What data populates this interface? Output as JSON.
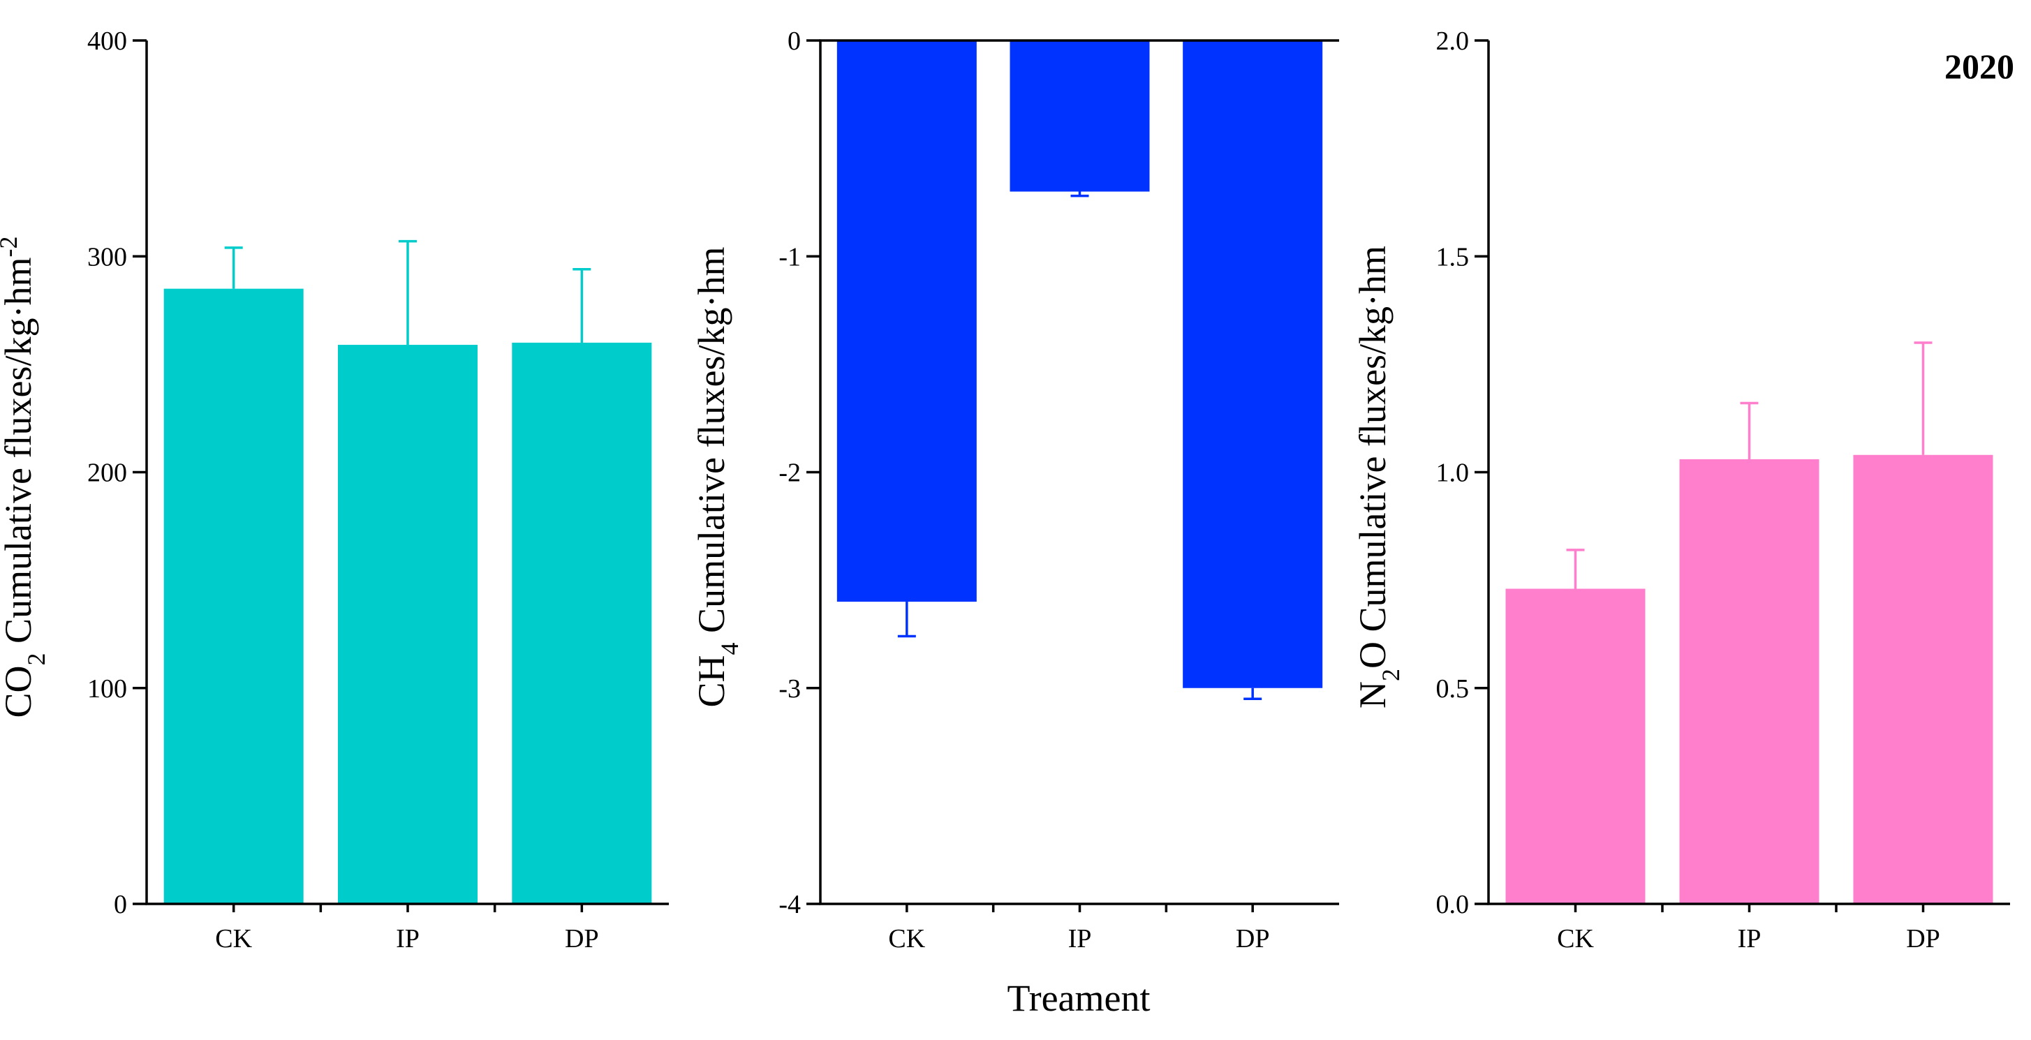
{
  "figure": {
    "year_label": "2020",
    "xlabel": "Treament"
  },
  "chart_data": [
    {
      "type": "bar",
      "id": "co2",
      "categories": [
        "CK",
        "IP",
        "DP"
      ],
      "values": [
        285,
        259,
        260
      ],
      "errors": [
        19,
        48,
        34
      ],
      "color": "#00CCCC",
      "ylim": [
        0,
        400
      ],
      "yticks": [
        0,
        100,
        200,
        300,
        400
      ],
      "ytick_labels": [
        "0",
        "100",
        "200",
        "300",
        "400"
      ],
      "ylabel_parts": {
        "pre": "CO",
        "sub": "2",
        "mid": " Cumulative fluxes/kg·hm",
        "sup": "-2"
      },
      "xlabel": ""
    },
    {
      "type": "bar",
      "id": "ch4",
      "categories": [
        "CK",
        "IP",
        "DP"
      ],
      "values": [
        -2.6,
        -0.7,
        -3.0
      ],
      "errors": [
        0.16,
        0.02,
        0.05
      ],
      "color": "#0033FF",
      "ylim": [
        -4,
        0
      ],
      "yticks": [
        -4,
        -3,
        -2,
        -1,
        0
      ],
      "ytick_labels": [
        "-4",
        "-3",
        "-2",
        "-1",
        "0"
      ],
      "ylabel_parts": {
        "pre": "CH",
        "sub": "4",
        "mid": " Cumulative fluxes/kg·hm",
        "sup": ""
      },
      "xlabel": "Treament"
    },
    {
      "type": "bar",
      "id": "n2o",
      "categories": [
        "CK",
        "IP",
        "DP"
      ],
      "values": [
        0.73,
        1.03,
        1.04
      ],
      "errors": [
        0.09,
        0.13,
        0.26
      ],
      "color": "#FF7FCC",
      "ylim": [
        0,
        2.0
      ],
      "yticks": [
        0,
        0.5,
        1.0,
        1.5,
        2.0
      ],
      "ytick_labels": [
        "0.0",
        "0.5",
        "1.0",
        "1.5",
        "2.0"
      ],
      "ylabel_parts": {
        "pre": "N",
        "sub": "2",
        "mid": "O Cumulative fluxes/kg·hm",
        "sup": ""
      },
      "xlabel": "",
      "annotation": "2020"
    }
  ]
}
